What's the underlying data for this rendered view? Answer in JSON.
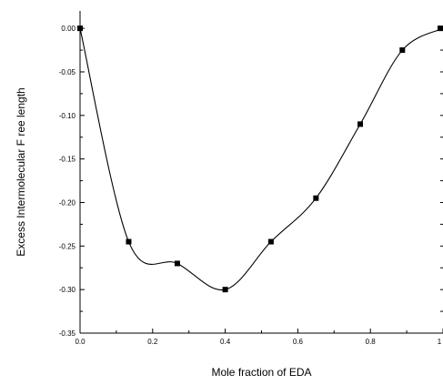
{
  "chart_data": {
    "type": "line",
    "title": "",
    "xlabel": "Mole fraction of EDA",
    "ylabel": "Excess Intermolecular F ree length",
    "xlim": [
      0.0,
      1.0
    ],
    "ylim": [
      -0.35,
      0.02
    ],
    "x_ticks": [
      {
        "value": 0.0,
        "label": "0.0"
      },
      {
        "value": 0.2,
        "label": "0.2"
      },
      {
        "value": 0.4,
        "label": "0.4"
      },
      {
        "value": 0.6,
        "label": "0.6"
      },
      {
        "value": 0.8,
        "label": "0.8"
      },
      {
        "value": 1.0,
        "label": "1"
      }
    ],
    "y_ticks": [
      {
        "value": 0.0,
        "label": "0.00"
      },
      {
        "value": -0.05,
        "label": "-0.05"
      },
      {
        "value": -0.1,
        "label": "-0.10"
      },
      {
        "value": -0.15,
        "label": "-0.15"
      },
      {
        "value": -0.2,
        "label": "-0.20"
      },
      {
        "value": -0.25,
        "label": "-0.25"
      },
      {
        "value": -0.3,
        "label": "-0.30"
      },
      {
        "value": -0.35,
        "label": "-0.35"
      }
    ],
    "grid": false,
    "series": [
      {
        "marker": "square",
        "x": [
          0.0,
          0.134,
          0.268,
          0.4,
          0.526,
          0.65,
          0.772,
          0.888,
          1.0
        ],
        "y": [
          0.0,
          -0.245,
          -0.27,
          -0.3,
          -0.245,
          -0.195,
          -0.11,
          -0.025,
          0.0
        ]
      }
    ]
  }
}
